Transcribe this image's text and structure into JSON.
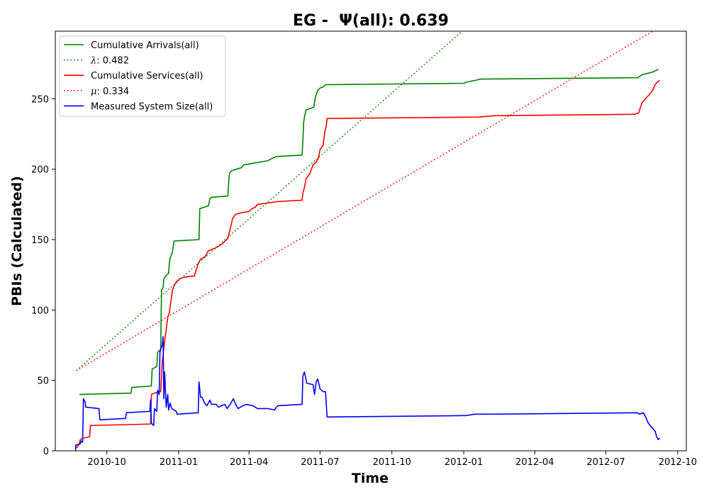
{
  "chart_data": {
    "type": "line",
    "title": "EG -  Ψ(all): 0.639",
    "xlabel": "Time",
    "ylabel": "PBIs (Calculated)",
    "xlim": [
      "2010-07-27",
      "2012-10-12"
    ],
    "ylim": [
      0,
      298
    ],
    "x_ticks": [
      "2010-10",
      "2011-01",
      "2011-04",
      "2011-07",
      "2011-10",
      "2012-01",
      "2012-04",
      "2012-07",
      "2012-10"
    ],
    "y_ticks": [
      0,
      50,
      100,
      150,
      200,
      250
    ],
    "grid": false,
    "legend_position": "top-left",
    "series": [
      {
        "name": "Cumulative Arrivals(all)",
        "color": "#008000",
        "style": "solid",
        "points": [
          [
            "2010-08-27",
            40
          ],
          [
            "2010-11-01",
            41
          ],
          [
            "2010-11-02",
            45
          ],
          [
            "2010-11-27",
            46
          ],
          [
            "2010-11-28",
            58
          ],
          [
            "2010-12-04",
            60
          ],
          [
            "2010-12-05",
            70
          ],
          [
            "2010-12-09",
            72
          ],
          [
            "2010-12-10",
            114
          ],
          [
            "2010-12-12",
            116
          ],
          [
            "2010-12-13",
            122
          ],
          [
            "2010-12-15",
            124
          ],
          [
            "2010-12-19",
            126
          ],
          [
            "2010-12-20",
            133
          ],
          [
            "2010-12-21",
            137
          ],
          [
            "2010-12-24",
            141
          ],
          [
            "2010-12-26",
            149
          ],
          [
            "2011-01-27",
            150
          ],
          [
            "2011-01-28",
            172
          ],
          [
            "2011-02-08",
            174
          ],
          [
            "2011-02-10",
            179
          ],
          [
            "2011-02-12",
            180
          ],
          [
            "2011-03-05",
            181
          ],
          [
            "2011-03-06",
            191
          ],
          [
            "2011-03-07",
            197
          ],
          [
            "2011-03-10",
            199
          ],
          [
            "2011-03-22",
            201
          ],
          [
            "2011-03-25",
            203
          ],
          [
            "2011-04-25",
            206
          ],
          [
            "2011-05-02",
            208
          ],
          [
            "2011-05-06",
            209
          ],
          [
            "2011-06-08",
            210
          ],
          [
            "2011-06-09",
            220
          ],
          [
            "2011-06-10",
            233
          ],
          [
            "2011-06-11",
            237
          ],
          [
            "2011-06-13",
            242
          ],
          [
            "2011-06-23",
            244
          ],
          [
            "2011-06-25",
            251
          ],
          [
            "2011-06-28",
            256
          ],
          [
            "2011-07-02",
            258
          ],
          [
            "2011-07-04",
            258
          ],
          [
            "2011-07-08",
            260
          ],
          [
            "2012-01-01",
            261
          ],
          [
            "2012-01-06",
            262
          ],
          [
            "2012-01-15",
            263
          ],
          [
            "2012-01-23",
            264
          ],
          [
            "2012-08-11",
            265
          ],
          [
            "2012-08-16",
            267
          ],
          [
            "2012-08-30",
            269
          ],
          [
            "2012-09-03",
            270
          ],
          [
            "2012-09-06",
            271
          ]
        ]
      },
      {
        "name": "λ: 0.482",
        "color": "#008000",
        "style": "dotted",
        "points": [
          [
            "2010-08-23",
            57
          ],
          [
            "2011-12-30",
            298
          ]
        ]
      },
      {
        "name": "Cumulative Services(all)",
        "color": "#ff0000",
        "style": "solid",
        "points": [
          [
            "2010-08-23",
            2
          ],
          [
            "2010-08-26",
            4
          ],
          [
            "2010-08-28",
            8
          ],
          [
            "2010-09-01",
            9
          ],
          [
            "2010-09-09",
            10
          ],
          [
            "2010-09-10",
            18
          ],
          [
            "2010-11-26",
            19
          ],
          [
            "2010-11-27",
            40
          ],
          [
            "2010-12-01",
            41
          ],
          [
            "2010-12-09",
            42
          ],
          [
            "2010-12-11",
            64
          ],
          [
            "2010-12-12",
            68
          ],
          [
            "2010-12-14",
            78
          ],
          [
            "2010-12-16",
            86
          ],
          [
            "2010-12-18",
            95
          ],
          [
            "2010-12-20",
            98
          ],
          [
            "2010-12-22",
            106
          ],
          [
            "2010-12-24",
            114
          ],
          [
            "2010-12-26",
            117
          ],
          [
            "2010-12-29",
            120
          ],
          [
            "2011-01-02",
            122
          ],
          [
            "2011-01-06",
            123
          ],
          [
            "2011-01-17",
            124
          ],
          [
            "2011-01-21",
            124
          ],
          [
            "2011-01-26",
            133
          ],
          [
            "2011-01-29",
            136
          ],
          [
            "2011-02-04",
            138
          ],
          [
            "2011-02-08",
            142
          ],
          [
            "2011-02-17",
            144
          ],
          [
            "2011-02-26",
            147
          ],
          [
            "2011-03-05",
            151
          ],
          [
            "2011-03-09",
            160
          ],
          [
            "2011-03-11",
            165
          ],
          [
            "2011-03-15",
            168
          ],
          [
            "2011-03-22",
            169
          ],
          [
            "2011-04-01",
            170
          ],
          [
            "2011-04-05",
            172
          ],
          [
            "2011-04-09",
            173
          ],
          [
            "2011-04-12",
            175
          ],
          [
            "2011-04-25",
            176
          ],
          [
            "2011-05-08",
            177
          ],
          [
            "2011-06-08",
            178
          ],
          [
            "2011-06-09",
            183
          ],
          [
            "2011-06-11",
            187
          ],
          [
            "2011-06-13",
            193
          ],
          [
            "2011-06-18",
            197
          ],
          [
            "2011-06-22",
            203
          ],
          [
            "2011-06-26",
            205
          ],
          [
            "2011-06-29",
            208
          ],
          [
            "2011-07-01",
            214
          ],
          [
            "2011-07-05",
            217
          ],
          [
            "2011-07-07",
            226
          ],
          [
            "2011-07-09",
            231
          ],
          [
            "2011-07-10",
            236
          ],
          [
            "2012-01-20",
            237
          ],
          [
            "2012-02-10",
            238
          ],
          [
            "2012-08-07",
            239
          ],
          [
            "2012-08-12",
            240
          ],
          [
            "2012-08-16",
            247
          ],
          [
            "2012-08-19",
            249
          ],
          [
            "2012-08-24",
            252
          ],
          [
            "2012-08-30",
            256
          ],
          [
            "2012-09-02",
            260
          ],
          [
            "2012-09-05",
            262
          ],
          [
            "2012-09-08",
            263
          ]
        ]
      },
      {
        "name": "μ: 0.334",
        "color": "#ff0000",
        "style": "dotted",
        "points": [
          [
            "2010-08-23",
            57
          ],
          [
            "2012-08-30",
            298
          ]
        ]
      },
      {
        "name": "Measured System Size(all)",
        "color": "#0000ff",
        "style": "solid",
        "points": [
          [
            "2010-08-22",
            0
          ],
          [
            "2010-08-22",
            4
          ],
          [
            "2010-08-28",
            5
          ],
          [
            "2010-08-29",
            7
          ],
          [
            "2010-08-31",
            6
          ],
          [
            "2010-09-01",
            37
          ],
          [
            "2010-09-03",
            35
          ],
          [
            "2010-09-04",
            31
          ],
          [
            "2010-09-21",
            30
          ],
          [
            "2010-09-22",
            22
          ],
          [
            "2010-10-25",
            23
          ],
          [
            "2010-10-26",
            27
          ],
          [
            "2010-11-25",
            28
          ],
          [
            "2010-11-26",
            36
          ],
          [
            "2010-11-27",
            20
          ],
          [
            "2010-11-28",
            19
          ],
          [
            "2010-11-30",
            18
          ],
          [
            "2010-12-01",
            30
          ],
          [
            "2010-12-04",
            28
          ],
          [
            "2010-12-05",
            43
          ],
          [
            "2010-12-07",
            40
          ],
          [
            "2010-12-08",
            70
          ],
          [
            "2010-12-10",
            74
          ],
          [
            "2010-12-11",
            75
          ],
          [
            "2010-12-12",
            81
          ],
          [
            "2010-12-13",
            37
          ],
          [
            "2010-12-14",
            56
          ],
          [
            "2010-12-16",
            31
          ],
          [
            "2010-12-18",
            40
          ],
          [
            "2010-12-19",
            29
          ],
          [
            "2010-12-21",
            34
          ],
          [
            "2010-12-23",
            30
          ],
          [
            "2010-12-29",
            28
          ],
          [
            "2010-12-30",
            26
          ],
          [
            "2011-01-26",
            27
          ],
          [
            "2011-01-27",
            49
          ],
          [
            "2011-01-29",
            38
          ],
          [
            "2011-01-31",
            38
          ],
          [
            "2011-02-03",
            34
          ],
          [
            "2011-02-06",
            32
          ],
          [
            "2011-02-10",
            36
          ],
          [
            "2011-02-12",
            33
          ],
          [
            "2011-02-18",
            33
          ],
          [
            "2011-02-21",
            31
          ],
          [
            "2011-03-01",
            33
          ],
          [
            "2011-03-04",
            30
          ],
          [
            "2011-03-08",
            33
          ],
          [
            "2011-03-12",
            37
          ],
          [
            "2011-03-15",
            33
          ],
          [
            "2011-03-18",
            30
          ],
          [
            "2011-03-24",
            32
          ],
          [
            "2011-03-29",
            33
          ],
          [
            "2011-04-06",
            32
          ],
          [
            "2011-04-12",
            30
          ],
          [
            "2011-04-25",
            30
          ],
          [
            "2011-05-04",
            29
          ],
          [
            "2011-05-06",
            31
          ],
          [
            "2011-05-08",
            32
          ],
          [
            "2011-06-08",
            33
          ],
          [
            "2011-06-09",
            53
          ],
          [
            "2011-06-11",
            56
          ],
          [
            "2011-06-14",
            48
          ],
          [
            "2011-06-22",
            47
          ],
          [
            "2011-06-24",
            40
          ],
          [
            "2011-06-26",
            49
          ],
          [
            "2011-06-28",
            51
          ],
          [
            "2011-07-01",
            44
          ],
          [
            "2011-07-05",
            42
          ],
          [
            "2011-07-08",
            42
          ],
          [
            "2011-07-10",
            24
          ],
          [
            "2012-01-01",
            25
          ],
          [
            "2012-01-04",
            25
          ],
          [
            "2012-01-15",
            26
          ],
          [
            "2012-01-24",
            26
          ],
          [
            "2012-02-08",
            26
          ],
          [
            "2012-08-10",
            27
          ],
          [
            "2012-08-13",
            26
          ],
          [
            "2012-08-18",
            27
          ],
          [
            "2012-08-21",
            24
          ],
          [
            "2012-08-24",
            20
          ],
          [
            "2012-08-28",
            17
          ],
          [
            "2012-09-02",
            14
          ],
          [
            "2012-09-04",
            10
          ],
          [
            "2012-09-06",
            8
          ],
          [
            "2012-09-08",
            9
          ]
        ]
      }
    ]
  }
}
